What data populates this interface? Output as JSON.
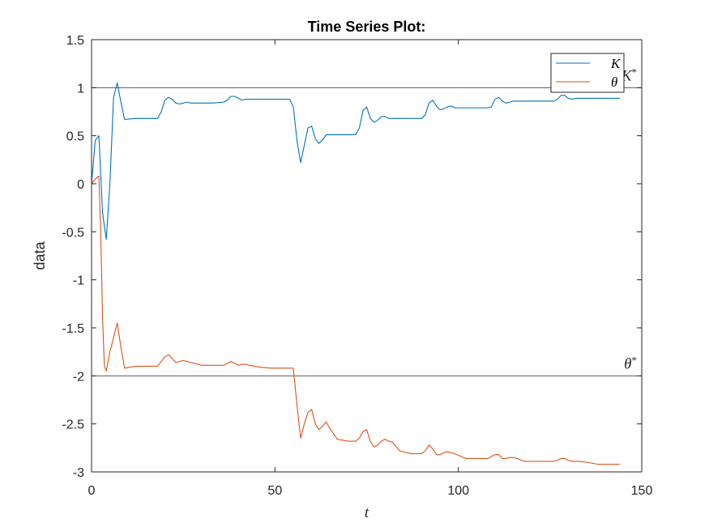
{
  "chart_data": {
    "type": "line",
    "title": "Time Series Plot:",
    "xlabel": "t",
    "ylabel": "data",
    "xlim": [
      0,
      150
    ],
    "ylim": [
      -3,
      1.5
    ],
    "xticks": [
      0,
      50,
      100,
      150
    ],
    "yticks": [
      -3,
      -2.5,
      -2,
      -1.5,
      -1,
      -0.5,
      0,
      0.5,
      1,
      1.5
    ],
    "grid": false,
    "legend_position": "top-right",
    "reference_lines": [
      {
        "label": "K",
        "label_sup": "*",
        "y": 1,
        "color": "#404040"
      },
      {
        "label": "θ",
        "label_sup": "*",
        "y": -2,
        "color": "#404040"
      }
    ],
    "series": [
      {
        "name": "K",
        "color": "#0072BD",
        "x": [
          0,
          1,
          2,
          3,
          4,
          5,
          6,
          7,
          8,
          9,
          12,
          15,
          18,
          19,
          20,
          21,
          22,
          23,
          24,
          25,
          26,
          27,
          30,
          33,
          36,
          37,
          38,
          39,
          40,
          41,
          42,
          43,
          46,
          49,
          52,
          54,
          55,
          56,
          57,
          58,
          59,
          60,
          61,
          62,
          63,
          64,
          67,
          70,
          72,
          73,
          74,
          75,
          76,
          77,
          78,
          79,
          80,
          81,
          84,
          87,
          90,
          91,
          92,
          93,
          94,
          95,
          96,
          97,
          98,
          99,
          102,
          105,
          108,
          109,
          110,
          111,
          112,
          113,
          114,
          115,
          118,
          121,
          124,
          126,
          127,
          128,
          129,
          130,
          131,
          132,
          135,
          138,
          141,
          144
        ],
        "values": [
          0.0,
          0.45,
          0.5,
          -0.3,
          -0.58,
          0.0,
          0.9,
          1.05,
          0.85,
          0.67,
          0.68,
          0.68,
          0.68,
          0.75,
          0.87,
          0.9,
          0.88,
          0.84,
          0.83,
          0.84,
          0.85,
          0.84,
          0.84,
          0.84,
          0.85,
          0.87,
          0.91,
          0.91,
          0.89,
          0.87,
          0.88,
          0.88,
          0.88,
          0.88,
          0.88,
          0.88,
          0.8,
          0.45,
          0.22,
          0.4,
          0.58,
          0.6,
          0.47,
          0.42,
          0.46,
          0.51,
          0.51,
          0.51,
          0.51,
          0.58,
          0.76,
          0.8,
          0.68,
          0.64,
          0.66,
          0.7,
          0.7,
          0.68,
          0.68,
          0.68,
          0.68,
          0.72,
          0.84,
          0.87,
          0.81,
          0.77,
          0.78,
          0.8,
          0.81,
          0.79,
          0.79,
          0.79,
          0.79,
          0.8,
          0.88,
          0.9,
          0.86,
          0.84,
          0.85,
          0.86,
          0.86,
          0.86,
          0.86,
          0.86,
          0.88,
          0.92,
          0.92,
          0.89,
          0.88,
          0.89,
          0.89,
          0.89,
          0.89,
          0.89
        ]
      },
      {
        "name": "θ",
        "color": "#D95319",
        "x": [
          0,
          1,
          2,
          2.5,
          3,
          3.5,
          4,
          5,
          6,
          7,
          8,
          9,
          12,
          15,
          18,
          19,
          20,
          21,
          22,
          23,
          24,
          25,
          26,
          27,
          30,
          33,
          36,
          37,
          38,
          39,
          40,
          41,
          42,
          43,
          46,
          49,
          52,
          54,
          55,
          56,
          57,
          58,
          59,
          60,
          61,
          62,
          63,
          64,
          65,
          67,
          70,
          72,
          73,
          74,
          75,
          76,
          77,
          78,
          79,
          80,
          81,
          82,
          84,
          87,
          90,
          91,
          92,
          93,
          94,
          95,
          96,
          97,
          98,
          99,
          102,
          105,
          108,
          109,
          110,
          111,
          112,
          113,
          114,
          115,
          116,
          118,
          121,
          124,
          126,
          127,
          128,
          129,
          130,
          131,
          132,
          133,
          135,
          138,
          141,
          144
        ],
        "values": [
          0.0,
          0.05,
          0.08,
          -0.5,
          -1.4,
          -1.9,
          -1.95,
          -1.75,
          -1.6,
          -1.45,
          -1.7,
          -1.92,
          -1.9,
          -1.9,
          -1.9,
          -1.85,
          -1.8,
          -1.78,
          -1.82,
          -1.86,
          -1.85,
          -1.84,
          -1.85,
          -1.86,
          -1.89,
          -1.89,
          -1.89,
          -1.87,
          -1.85,
          -1.87,
          -1.89,
          -1.88,
          -1.88,
          -1.89,
          -1.91,
          -1.92,
          -1.92,
          -1.92,
          -1.92,
          -2.3,
          -2.65,
          -2.5,
          -2.38,
          -2.35,
          -2.5,
          -2.56,
          -2.52,
          -2.48,
          -2.55,
          -2.66,
          -2.68,
          -2.68,
          -2.65,
          -2.58,
          -2.56,
          -2.68,
          -2.74,
          -2.72,
          -2.68,
          -2.66,
          -2.68,
          -2.69,
          -2.78,
          -2.81,
          -2.81,
          -2.78,
          -2.72,
          -2.76,
          -2.82,
          -2.82,
          -2.8,
          -2.79,
          -2.8,
          -2.81,
          -2.86,
          -2.86,
          -2.86,
          -2.84,
          -2.82,
          -2.82,
          -2.86,
          -2.86,
          -2.85,
          -2.85,
          -2.86,
          -2.89,
          -2.89,
          -2.89,
          -2.89,
          -2.88,
          -2.86,
          -2.86,
          -2.88,
          -2.89,
          -2.89,
          -2.89,
          -2.9,
          -2.92,
          -2.92,
          -2.92
        ]
      }
    ]
  }
}
